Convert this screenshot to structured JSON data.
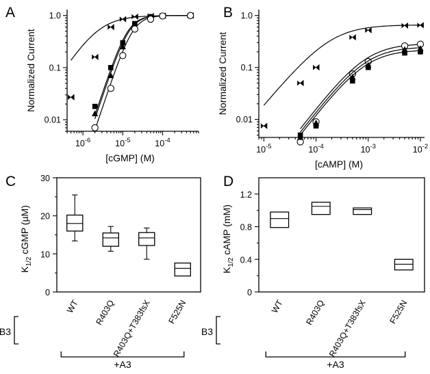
{
  "panels": {
    "A": {
      "letter": "A"
    },
    "B": {
      "letter": "B"
    },
    "C": {
      "letter": "C"
    },
    "D": {
      "letter": "D"
    }
  },
  "chart_data": [
    {
      "panel": "A",
      "type": "line",
      "xlabel": "[cGMP] (M)",
      "ylabel": "Normalized Current",
      "x_scale": "log",
      "y_scale": "log",
      "xlim": [
        4e-07,
        0.0008
      ],
      "ylim": [
        0.006,
        1.3
      ],
      "x_ticks": [
        {
          "v": 1e-06,
          "base": "10",
          "exp": "-6"
        },
        {
          "v": 1e-05,
          "base": "10",
          "exp": "-5"
        },
        {
          "v": 0.0001,
          "base": "10",
          "exp": "-4"
        }
      ],
      "y_ticks": [
        {
          "v": 0.01,
          "label": "0.01"
        },
        {
          "v": 0.1,
          "label": "0.1"
        },
        {
          "v": 1.0,
          "label": "1.0"
        }
      ],
      "series": [
        {
          "marker": "bowtie",
          "hill": {
            "k": 2.3e-06,
            "n": 1.2,
            "imax": 1.0
          },
          "x": [
            5e-07,
            2e-06,
            5e-06,
            1e-05,
            2e-05,
            5e-05,
            0.0001,
            0.0005
          ],
          "y": [
            0.027,
            0.16,
            0.6,
            0.85,
            0.95,
            0.98,
            0.99,
            1.0
          ]
        },
        {
          "marker": "square",
          "hill": {
            "k": 1.35e-05,
            "n": 2.3,
            "imax": 1.0
          },
          "x": [
            2e-06,
            5e-06,
            1e-05,
            2e-05,
            5e-05,
            0.0001,
            0.0005
          ],
          "y": [
            0.018,
            0.1,
            0.3,
            0.7,
            0.95,
            0.99,
            1.0
          ]
        },
        {
          "marker": "triangle",
          "hill": {
            "k": 1.45e-05,
            "n": 2.3,
            "imax": 1.0
          },
          "x": [
            2e-06,
            5e-06,
            1e-05,
            2e-05,
            5e-05,
            0.0001,
            0.0005
          ],
          "y": [
            0.013,
            0.07,
            0.25,
            0.62,
            0.93,
            0.99,
            1.0
          ]
        },
        {
          "marker": "circle",
          "hill": {
            "k": 1.8e-05,
            "n": 2.3,
            "imax": 1.0
          },
          "x": [
            2e-06,
            5e-06,
            1e-05,
            2e-05,
            5e-05,
            0.0001,
            0.0005
          ],
          "y": [
            0.007,
            0.04,
            0.17,
            0.55,
            0.85,
            0.98,
            1.0
          ]
        }
      ]
    },
    {
      "panel": "B",
      "type": "line",
      "xlabel": "[cAMP] (M)",
      "ylabel": "Normalized Current",
      "x_scale": "log",
      "y_scale": "log",
      "xlim": [
        8e-06,
        0.012
      ],
      "ylim": [
        0.0045,
        1.3
      ],
      "x_ticks": [
        {
          "v": 1e-05,
          "base": "10",
          "exp": "-5"
        },
        {
          "v": 0.0001,
          "base": "10",
          "exp": "-4"
        },
        {
          "v": 0.001,
          "base": "10",
          "exp": "-3"
        },
        {
          "v": 0.01,
          "base": "10",
          "exp": "-2"
        }
      ],
      "y_ticks": [
        {
          "v": 0.01,
          "label": "0.01"
        },
        {
          "v": 0.1,
          "label": "0.1"
        },
        {
          "v": 1.0,
          "label": "1.0"
        }
      ],
      "series": [
        {
          "marker": "bowtie",
          "hill": {
            "k": 0.00019,
            "n": 1.2,
            "imax": 0.66
          },
          "x": [
            1e-05,
            5e-05,
            0.0001,
            0.0005,
            0.001,
            0.005,
            0.01
          ],
          "y": [
            0.0075,
            0.05,
            0.1,
            0.38,
            0.52,
            0.64,
            0.65
          ]
        },
        {
          "marker": "circle",
          "hill": {
            "k": 0.0009,
            "n": 1.3,
            "imax": 0.29
          },
          "x": [
            5e-05,
            0.0001,
            0.0005,
            0.001,
            0.005,
            0.01
          ],
          "y": [
            0.0037,
            0.009,
            0.075,
            0.13,
            0.26,
            0.28
          ]
        },
        {
          "marker": "triangle",
          "hill": {
            "k": 0.0009,
            "n": 1.3,
            "imax": 0.25
          },
          "x": [
            5e-05,
            0.0001,
            0.0005,
            0.001,
            0.005,
            0.01
          ],
          "y": [
            0.0045,
            0.0085,
            0.065,
            0.11,
            0.22,
            0.23
          ]
        },
        {
          "marker": "square",
          "hill": {
            "k": 0.0009,
            "n": 1.3,
            "imax": 0.22
          },
          "x": [
            5e-05,
            0.0001,
            0.0005,
            0.001,
            0.005,
            0.01
          ],
          "y": [
            0.005,
            0.0075,
            0.055,
            0.1,
            0.19,
            0.2
          ]
        }
      ]
    },
    {
      "panel": "C",
      "type": "boxplot",
      "ylabel_main": "K",
      "ylabel_sub": "1/2",
      "ylabel_rest": " cGMP (µM)",
      "ylim": [
        0,
        30
      ],
      "y_ticks": [
        0,
        10,
        20,
        30
      ],
      "categories": [
        "WT",
        "R403Q",
        "R403Q+T383fsX",
        "F525N"
      ],
      "boxes": [
        {
          "min": 13.4,
          "q1": 16,
          "median": 18,
          "q3": 20.2,
          "max": 25.5
        },
        {
          "min": 10.7,
          "q1": 12,
          "median": 14.2,
          "q3": 15.5,
          "max": 17.2
        },
        {
          "min": 8.6,
          "q1": 12.2,
          "median": 14.2,
          "q3": 15.6,
          "max": 16.8
        },
        {
          "min": null,
          "q1": 4.2,
          "median": 6.2,
          "q3": 7.6,
          "max": null
        }
      ],
      "group_label": "B3",
      "bracket_label": "+A3"
    },
    {
      "panel": "D",
      "type": "boxplot",
      "ylabel_main": "K",
      "ylabel_sub": "1/2",
      "ylabel_rest": " cAMP (mM)",
      "ylim": [
        0,
        1.4
      ],
      "y_ticks": [
        0,
        0.4,
        0.8,
        1.2
      ],
      "y_tick_labels": [
        "0",
        "0.4",
        "0.8",
        "1.2"
      ],
      "categories": [
        "WT",
        "R403Q",
        "R403Q+T383fsX",
        "F525N"
      ],
      "boxes": [
        {
          "min": null,
          "q1": 0.79,
          "median": 0.9,
          "q3": 0.98,
          "max": null
        },
        {
          "min": null,
          "q1": 0.95,
          "median": 1.05,
          "q3": 1.1,
          "max": null
        },
        {
          "min": null,
          "q1": 0.95,
          "median": 1.01,
          "q3": 1.03,
          "max": null
        },
        {
          "min": null,
          "q1": 0.27,
          "median": 0.34,
          "q3": 0.4,
          "max": null
        }
      ],
      "group_label": "B3",
      "bracket_label": "+A3"
    }
  ]
}
